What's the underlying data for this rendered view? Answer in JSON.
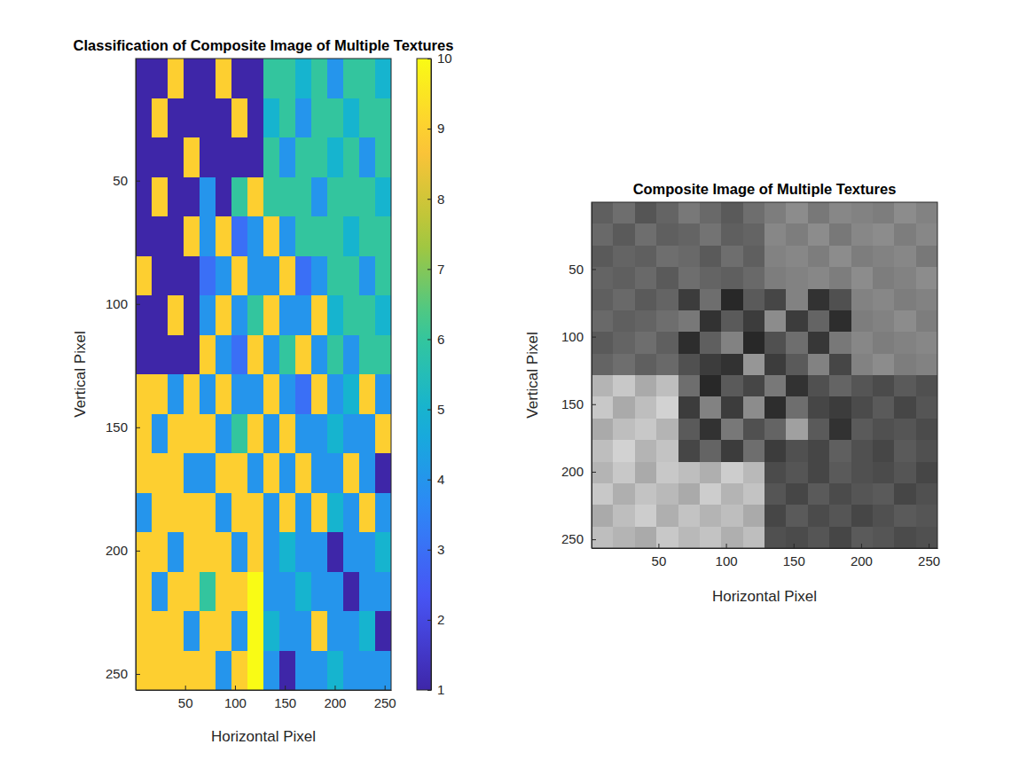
{
  "chart_data": [
    {
      "type": "heatmap",
      "title": "Classification of Composite Image of Multiple Textures",
      "x_label": "Horizontal Pixel",
      "y_label": "Vertical Pixel",
      "color": "parula",
      "x": [
        8.5,
        24.5,
        40.5,
        56.5,
        72.5,
        88.5,
        104.5,
        120.5,
        136.5,
        152.5,
        168.5,
        184.5,
        200.5,
        216.5,
        232.5,
        248.5
      ],
      "y": [
        8.5,
        24.5,
        40.5,
        56.5,
        72.5,
        88.5,
        104.5,
        120.5,
        136.5,
        152.5,
        168.5,
        184.5,
        200.5,
        216.5,
        232.5,
        248.5
      ],
      "cells": [
        [
          1,
          1,
          9,
          1,
          1,
          9,
          1,
          1,
          6,
          6,
          5,
          6,
          4,
          6,
          6,
          5
        ],
        [
          1,
          9,
          1,
          1,
          1,
          1,
          9,
          1,
          5,
          6,
          4,
          6,
          6,
          5,
          6,
          6
        ],
        [
          1,
          1,
          1,
          9,
          1,
          1,
          1,
          1,
          6,
          4,
          6,
          6,
          5,
          6,
          4,
          6
        ],
        [
          1,
          9,
          1,
          1,
          4,
          1,
          6,
          9,
          6,
          6,
          6,
          4,
          6,
          6,
          6,
          5
        ],
        [
          1,
          1,
          1,
          9,
          4,
          9,
          3,
          4,
          9,
          4,
          6,
          6,
          6,
          5,
          6,
          6
        ],
        [
          9,
          1,
          1,
          1,
          3,
          4,
          9,
          4,
          4,
          9,
          3,
          4,
          6,
          6,
          4,
          6
        ],
        [
          1,
          1,
          9,
          1,
          4,
          9,
          4,
          6,
          9,
          4,
          4,
          9,
          5,
          6,
          6,
          5
        ],
        [
          1,
          1,
          1,
          1,
          9,
          4,
          3,
          9,
          4,
          6,
          9,
          4,
          6,
          4,
          6,
          6
        ],
        [
          9,
          9,
          4,
          9,
          4,
          9,
          4,
          4,
          9,
          4,
          3,
          9,
          4,
          5,
          9,
          4
        ],
        [
          9,
          4,
          9,
          9,
          9,
          4,
          6,
          9,
          4,
          9,
          4,
          4,
          5,
          4,
          4,
          9
        ],
        [
          9,
          9,
          9,
          4,
          4,
          9,
          9,
          4,
          9,
          4,
          9,
          4,
          4,
          9,
          4,
          1
        ],
        [
          4,
          9,
          9,
          9,
          9,
          4,
          9,
          9,
          4,
          9,
          4,
          9,
          5,
          4,
          9,
          4
        ],
        [
          9,
          9,
          4,
          9,
          9,
          9,
          4,
          9,
          4,
          5,
          4,
          4,
          1,
          4,
          4,
          5
        ],
        [
          9,
          4,
          9,
          9,
          6,
          9,
          9,
          10,
          4,
          4,
          5,
          4,
          4,
          1,
          4,
          4
        ],
        [
          9,
          9,
          9,
          4,
          9,
          9,
          4,
          10,
          5,
          4,
          4,
          9,
          4,
          4,
          5,
          1
        ],
        [
          9,
          9,
          9,
          9,
          9,
          4,
          9,
          10,
          4,
          1,
          4,
          4,
          5,
          4,
          4,
          4
        ]
      ],
      "xlim": [
        0.5,
        256.5
      ],
      "ylim": [
        0.5,
        256.5
      ],
      "xticks": [
        50,
        100,
        150,
        200,
        250
      ],
      "yticks": [
        50,
        100,
        150,
        200,
        250
      ],
      "color_range": [
        1,
        10
      ],
      "colorbar_ticks": [
        1,
        2,
        3,
        4,
        5,
        6,
        7,
        8,
        9,
        10
      ]
    },
    {
      "type": "heatmap",
      "title": "Composite Image of Multiple Textures",
      "x_label": "Horizontal Pixel",
      "y_label": "Vertical Pixel",
      "color": "gray",
      "x": [
        8.5,
        24.5,
        40.5,
        56.5,
        72.5,
        88.5,
        104.5,
        120.5,
        136.5,
        152.5,
        168.5,
        184.5,
        200.5,
        216.5,
        232.5,
        248.5
      ],
      "y": [
        8.5,
        24.5,
        40.5,
        56.5,
        72.5,
        88.5,
        104.5,
        120.5,
        136.5,
        152.5,
        168.5,
        184.5,
        200.5,
        216.5,
        232.5,
        248.5
      ],
      "cells": [
        [
          95,
          110,
          85,
          100,
          120,
          105,
          90,
          110,
          125,
          140,
          120,
          135,
          130,
          125,
          140,
          130
        ],
        [
          105,
          90,
          110,
          95,
          100,
          115,
          95,
          100,
          135,
          125,
          140,
          120,
          135,
          140,
          125,
          135
        ],
        [
          90,
          100,
          95,
          110,
          105,
          90,
          110,
          95,
          130,
          135,
          125,
          140,
          125,
          130,
          135,
          120
        ],
        [
          100,
          95,
          105,
          90,
          110,
          100,
          95,
          105,
          125,
          130,
          135,
          125,
          140,
          125,
          130,
          140
        ],
        [
          95,
          105,
          90,
          100,
          60,
          110,
          40,
          90,
          70,
          130,
          50,
          80,
          130,
          135,
          125,
          130
        ],
        [
          105,
          95,
          100,
          110,
          120,
          50,
          90,
          60,
          140,
          60,
          100,
          45,
          125,
          130,
          140,
          125
        ],
        [
          90,
          100,
          110,
          95,
          45,
          95,
          130,
          40,
          80,
          110,
          55,
          120,
          135,
          125,
          130,
          135
        ],
        [
          100,
          110,
          95,
          105,
          80,
          60,
          50,
          150,
          60,
          90,
          130,
          70,
          130,
          140,
          125,
          130
        ],
        [
          180,
          200,
          170,
          190,
          110,
          40,
          90,
          70,
          120,
          50,
          80,
          100,
          85,
          75,
          90,
          80
        ],
        [
          200,
          170,
          190,
          210,
          60,
          130,
          60,
          140,
          45,
          110,
          70,
          60,
          75,
          90,
          70,
          85
        ],
        [
          170,
          190,
          200,
          180,
          90,
          50,
          120,
          80,
          100,
          160,
          90,
          50,
          90,
          80,
          85,
          75
        ],
        [
          190,
          210,
          180,
          195,
          70,
          100,
          60,
          110,
          60,
          80,
          70,
          95,
          80,
          70,
          90,
          80
        ],
        [
          180,
          200,
          170,
          200,
          190,
          175,
          205,
          185,
          75,
          85,
          70,
          90,
          80,
          75,
          85,
          70
        ],
        [
          200,
          175,
          195,
          185,
          170,
          205,
          180,
          195,
          85,
          70,
          90,
          75,
          85,
          90,
          70,
          80
        ],
        [
          170,
          190,
          205,
          175,
          195,
          180,
          190,
          170,
          70,
          90,
          75,
          85,
          70,
          80,
          90,
          85
        ],
        [
          190,
          180,
          170,
          200,
          185,
          195,
          175,
          190,
          80,
          75,
          85,
          70,
          90,
          85,
          75,
          80
        ]
      ],
      "xlim": [
        0.5,
        256.5
      ],
      "ylim": [
        0.5,
        256.5
      ],
      "xticks": [
        50,
        100,
        150,
        200,
        250
      ],
      "yticks": [
        50,
        100,
        150,
        200,
        250
      ],
      "color_range": [
        0,
        255
      ]
    }
  ]
}
